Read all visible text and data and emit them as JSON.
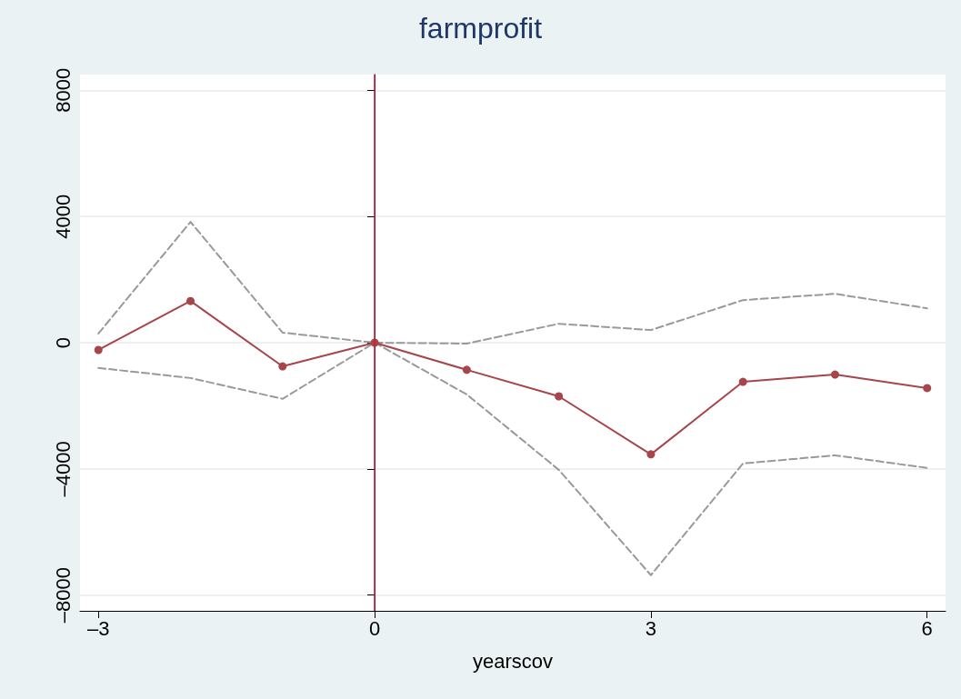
{
  "chart_data": {
    "type": "line",
    "title": "farmprofit",
    "xlabel": "yearscov",
    "x": [
      -3,
      -2,
      -1,
      0,
      1,
      2,
      3,
      4,
      5,
      6
    ],
    "series": [
      {
        "color": "#999999",
        "line_style": "dashed",
        "marker": "none",
        "values": [
          290,
          3830,
          320,
          0,
          -30,
          600,
          400,
          1350,
          1550,
          1090
        ]
      },
      {
        "color": "#999999",
        "line_style": "dashed",
        "marker": "none",
        "values": [
          -800,
          -1120,
          -1780,
          0,
          -1640,
          -4030,
          -7370,
          -3830,
          -3570,
          -3970
        ]
      },
      {
        "color": "#a6454a",
        "line_style": "solid",
        "marker": "circle",
        "values": [
          -230,
          1320,
          -750,
          0,
          -860,
          -1700,
          -3540,
          -1240,
          -1010,
          -1440
        ]
      }
    ],
    "xlim": [
      -3.2,
      6.2
    ],
    "xticks": [
      {
        "value": -3,
        "label": "–3"
      },
      0,
      3,
      6
    ],
    "ylim": [
      -8500,
      8500
    ],
    "yticks": [
      {
        "value": -8000,
        "label": "–8000"
      },
      {
        "value": -4000,
        "label": "–4000"
      },
      0,
      4000,
      8000
    ],
    "grid": "y",
    "ref_lines": [
      {
        "axis": "x",
        "value": 0,
        "color": "#cc1d3a",
        "line_style": "solid"
      }
    ]
  }
}
